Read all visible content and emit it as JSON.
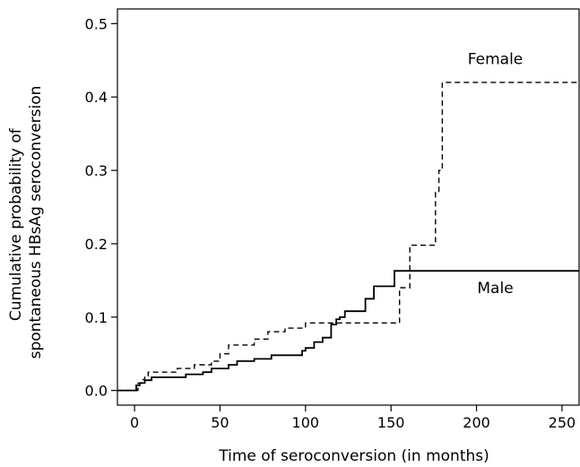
{
  "chart_data": {
    "type": "line",
    "xlabel": "Time of seroconversion (in months)",
    "ylabel": [
      "Cumulative probability of",
      "spontaneous HBsAg seroconversion"
    ],
    "xlim": [
      -10,
      260
    ],
    "ylim": [
      -0.02,
      0.52
    ],
    "xticks": [
      0,
      50,
      100,
      150,
      200,
      250
    ],
    "yticks": [
      0.0,
      0.1,
      0.2,
      0.3,
      0.4,
      0.5
    ],
    "ytick_labels": [
      "0.0",
      "0.1",
      "0.2",
      "0.3",
      "0.4",
      "0.5"
    ],
    "grid": false,
    "step": true,
    "series": [
      {
        "name": "Female",
        "line_style": "dashed",
        "color": "#000000",
        "points": [
          [
            -10,
            0.0
          ],
          [
            0,
            0.0
          ],
          [
            2,
            0.01
          ],
          [
            4,
            0.015
          ],
          [
            6,
            0.02
          ],
          [
            8,
            0.025
          ],
          [
            20,
            0.025
          ],
          [
            25,
            0.03
          ],
          [
            35,
            0.035
          ],
          [
            45,
            0.04
          ],
          [
            50,
            0.05
          ],
          [
            55,
            0.062
          ],
          [
            70,
            0.07
          ],
          [
            78,
            0.08
          ],
          [
            88,
            0.085
          ],
          [
            100,
            0.092
          ],
          [
            118,
            0.092
          ],
          [
            120,
            0.092
          ],
          [
            154,
            0.092
          ],
          [
            155,
            0.14
          ],
          [
            160,
            0.14
          ],
          [
            161,
            0.198
          ],
          [
            175,
            0.198
          ],
          [
            176,
            0.27
          ],
          [
            178,
            0.3
          ],
          [
            180,
            0.42
          ],
          [
            260,
            0.42
          ]
        ]
      },
      {
        "name": "Male",
        "line_style": "solid",
        "color": "#000000",
        "points": [
          [
            -10,
            0.0
          ],
          [
            0,
            0.0
          ],
          [
            1,
            0.007
          ],
          [
            3,
            0.01
          ],
          [
            6,
            0.014
          ],
          [
            10,
            0.018
          ],
          [
            30,
            0.022
          ],
          [
            40,
            0.025
          ],
          [
            45,
            0.03
          ],
          [
            55,
            0.035
          ],
          [
            60,
            0.04
          ],
          [
            70,
            0.043
          ],
          [
            80,
            0.048
          ],
          [
            98,
            0.054
          ],
          [
            100,
            0.058
          ],
          [
            105,
            0.066
          ],
          [
            110,
            0.072
          ],
          [
            115,
            0.09
          ],
          [
            118,
            0.097
          ],
          [
            120,
            0.1
          ],
          [
            123,
            0.108
          ],
          [
            135,
            0.125
          ],
          [
            140,
            0.142
          ],
          [
            150,
            0.142
          ],
          [
            152,
            0.163
          ],
          [
            260,
            0.163
          ]
        ]
      }
    ],
    "annotations": [
      {
        "text": "Female",
        "x": 211,
        "y": 0.445
      },
      {
        "text": "Male",
        "x": 211,
        "y": 0.133
      }
    ]
  }
}
